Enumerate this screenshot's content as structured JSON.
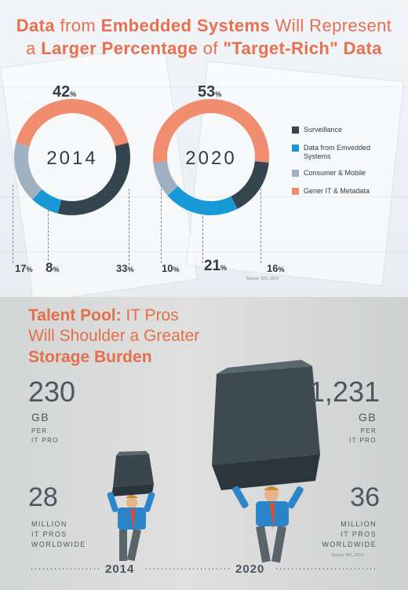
{
  "top": {
    "title": {
      "line1": {
        "p1": "Data",
        "p2": " from ",
        "p3": "Embedded Systems",
        "p4": " Will Represent"
      },
      "line2": {
        "p1": "a ",
        "p2": "Larger Percentage",
        "p3": " of ",
        "p4": "\"Target-Rich\" Data"
      }
    },
    "source": "Source: IDC, 2014"
  },
  "colors": {
    "surveillance": "#34454f",
    "embedded": "#1799d8",
    "consumer": "#9fb0c0",
    "general": "#ef8d6e",
    "accent": "#e8704e"
  },
  "chart_data": {
    "type": "pie",
    "variant": "donut",
    "series_names": [
      "Surveillance",
      "Data from Emvedded Systems",
      "Consumer & Mobile",
      "Gener IT & Metadata"
    ],
    "legend_position": "right",
    "charts": [
      {
        "year": "2014",
        "values": {
          "Surveillance": 33,
          "Data from Emvedded Systems": 8,
          "Consumer & Mobile": 17,
          "Gener IT & Metadata": 42
        },
        "labels": {
          "Surveillance": "33%",
          "Data from Emvedded Systems": "8%",
          "Consumer & Mobile": "17%",
          "Gener IT & Metadata": "42%"
        }
      },
      {
        "year": "2020",
        "values": {
          "Surveillance": 16,
          "Data from Emvedded Systems": 21,
          "Consumer & Mobile": 10,
          "Gener IT & Metadata": 53
        },
        "labels": {
          "Surveillance": "16%",
          "Data from Emvedded Systems": "21%",
          "Consumer & Mobile": "10%",
          "Gener IT & Metadata": "53%"
        }
      }
    ]
  },
  "legend": [
    {
      "label": "Surveillance",
      "color_key": "surveillance"
    },
    {
      "label": "Data from Emvedded",
      "label2": "Systems",
      "color_key": "embedded"
    },
    {
      "label": "Consumer & Mobile",
      "color_key": "consumer"
    },
    {
      "label": "Gener IT & Metadata",
      "color_key": "general"
    }
  ],
  "labels_display": {
    "d2014_top": {
      "n": "42",
      "s": "%"
    },
    "d2014_a": {
      "n": "17",
      "s": "%"
    },
    "d2014_b": {
      "n": "8",
      "s": "%"
    },
    "d2014_c": {
      "n": "33",
      "s": "%"
    },
    "d2020_top": {
      "n": "53",
      "s": "%"
    },
    "d2020_a": {
      "n": "10",
      "s": "%"
    },
    "d2020_b": {
      "n": "21",
      "s": "%"
    },
    "d2020_c": {
      "n": "16",
      "s": "%"
    }
  },
  "bottom": {
    "title": {
      "line1a": "Talent Pool:",
      "line1b": " IT Pros",
      "line2": "Will Shoulder a Greater",
      "line3": "Storage Burden"
    },
    "y2014": {
      "gb": "230",
      "gb_unit": "GB",
      "per": "PER",
      "itpro": "IT PRO",
      "pros": "28",
      "million": "MILLION",
      "itpros": "IT PROS",
      "worldwide": "WORLDWIDE",
      "year": "2014"
    },
    "y2020": {
      "gb": "1,231",
      "gb_unit": "GB",
      "per": "PER",
      "itpro": "IT PRO",
      "pros": "36",
      "million": "MILLION",
      "itpros": "IT PROS",
      "worldwide": "WORLDWIDE",
      "year": "2020"
    },
    "source": "Source: IDC, 2014"
  },
  "chart_data_bottom": {
    "type": "table",
    "columns": [
      "2014",
      "2020"
    ],
    "rows": [
      {
        "metric": "GB per IT pro",
        "values": [
          230,
          1231
        ]
      },
      {
        "metric": "Million IT pros worldwide",
        "values": [
          28,
          36
        ]
      }
    ]
  }
}
